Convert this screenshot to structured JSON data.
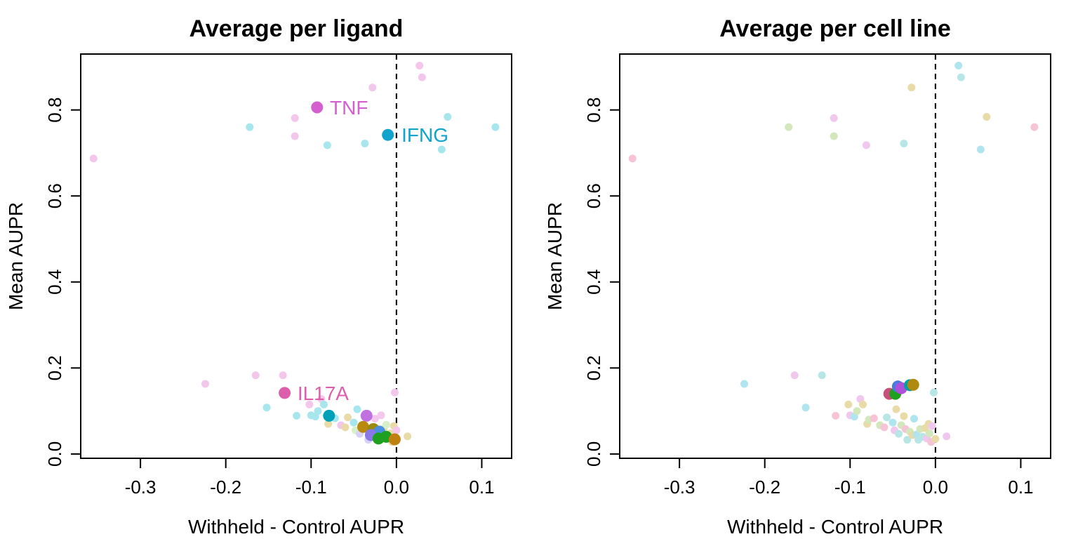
{
  "chart_data": [
    {
      "type": "scatter",
      "title": "Average per ligand",
      "xlabel": "Withheld - Control AUPR",
      "ylabel": "Mean AUPR",
      "xticks": [
        "-0.3",
        "-0.2",
        "-0.1",
        "0.0",
        "0.1"
      ],
      "yticks": [
        "0.0",
        "0.2",
        "0.4",
        "0.6",
        "0.8"
      ],
      "xlim": [
        -0.37,
        0.135
      ],
      "ylim": [
        -0.01,
        0.93
      ],
      "reference_line": {
        "x": 0,
        "style": "dashed"
      },
      "grid": false,
      "background_points": [
        {
          "x": -0.355,
          "y": 0.687,
          "color": "#f3c6ec"
        },
        {
          "x": -0.172,
          "y": 0.76,
          "color": "#a8e6ee"
        },
        {
          "x": -0.119,
          "y": 0.781,
          "color": "#f3c6ec"
        },
        {
          "x": -0.119,
          "y": 0.739,
          "color": "#f3c6ec"
        },
        {
          "x": -0.081,
          "y": 0.718,
          "color": "#a8e6ee"
        },
        {
          "x": -0.037,
          "y": 0.722,
          "color": "#a8e6ee"
        },
        {
          "x": -0.028,
          "y": 0.852,
          "color": "#f3c6ec"
        },
        {
          "x": 0.027,
          "y": 0.903,
          "color": "#f3c6ec"
        },
        {
          "x": 0.03,
          "y": 0.876,
          "color": "#f3c6ec"
        },
        {
          "x": 0.06,
          "y": 0.784,
          "color": "#a8e6ee"
        },
        {
          "x": 0.116,
          "y": 0.76,
          "color": "#a8e6ee"
        },
        {
          "x": 0.053,
          "y": 0.708,
          "color": "#a8e6ee"
        },
        {
          "x": -0.224,
          "y": 0.163,
          "color": "#f3c6ec"
        },
        {
          "x": -0.165,
          "y": 0.183,
          "color": "#f3c6ec"
        },
        {
          "x": -0.133,
          "y": 0.183,
          "color": "#f3c6ec"
        },
        {
          "x": -0.152,
          "y": 0.108,
          "color": "#a8e6ee"
        },
        {
          "x": -0.117,
          "y": 0.089,
          "color": "#a8e6ee"
        },
        {
          "x": -0.102,
          "y": 0.115,
          "color": "#f3c6ec"
        },
        {
          "x": -0.1,
          "y": 0.09,
          "color": "#a8e6ee"
        },
        {
          "x": -0.095,
          "y": 0.087,
          "color": "#a8e6ee"
        },
        {
          "x": -0.092,
          "y": 0.1,
          "color": "#a8e6ee"
        },
        {
          "x": -0.088,
          "y": 0.128,
          "color": "#f3c6ec"
        },
        {
          "x": -0.085,
          "y": 0.115,
          "color": "#a8e6ee"
        },
        {
          "x": -0.08,
          "y": 0.07,
          "color": "#e8dba8"
        },
        {
          "x": -0.072,
          "y": 0.083,
          "color": "#a8e6ee"
        },
        {
          "x": -0.065,
          "y": 0.067,
          "color": "#f3c6ec"
        },
        {
          "x": -0.06,
          "y": 0.062,
          "color": "#e8dba8"
        },
        {
          "x": -0.057,
          "y": 0.085,
          "color": "#e8dba8"
        },
        {
          "x": -0.05,
          "y": 0.073,
          "color": "#a8e6ee"
        },
        {
          "x": -0.048,
          "y": 0.055,
          "color": "#d8f0c8"
        },
        {
          "x": -0.046,
          "y": 0.104,
          "color": "#a8e6ee"
        },
        {
          "x": -0.043,
          "y": 0.047,
          "color": "#d9d0f5"
        },
        {
          "x": -0.04,
          "y": 0.067,
          "color": "#e8dba8"
        },
        {
          "x": -0.035,
          "y": 0.058,
          "color": "#f3c6ec"
        },
        {
          "x": -0.033,
          "y": 0.033,
          "color": "#d9d0f5"
        },
        {
          "x": -0.03,
          "y": 0.052,
          "color": "#d8f0c8"
        },
        {
          "x": -0.025,
          "y": 0.082,
          "color": "#f3c6ec"
        },
        {
          "x": -0.022,
          "y": 0.045,
          "color": "#a8e6ee"
        },
        {
          "x": -0.018,
          "y": 0.09,
          "color": "#f3c6ec"
        },
        {
          "x": -0.015,
          "y": 0.058,
          "color": "#e8dba8"
        },
        {
          "x": -0.012,
          "y": 0.068,
          "color": "#d8f0c8"
        },
        {
          "x": -0.01,
          "y": 0.036,
          "color": "#e8dba8"
        },
        {
          "x": -0.007,
          "y": 0.048,
          "color": "#e8dba8"
        },
        {
          "x": -0.005,
          "y": 0.028,
          "color": "#e8dba8"
        },
        {
          "x": -0.003,
          "y": 0.065,
          "color": "#e8dba8"
        },
        {
          "x": -0.002,
          "y": 0.143,
          "color": "#f3c6ec"
        },
        {
          "x": 0.0,
          "y": 0.055,
          "color": "#f3c6ec"
        },
        {
          "x": 0.013,
          "y": 0.041,
          "color": "#e8dba8"
        }
      ],
      "highlight_points": [
        {
          "x": -0.093,
          "y": 0.806,
          "color": "#d65fd0"
        },
        {
          "x": -0.01,
          "y": 0.742,
          "color": "#10a4cc"
        },
        {
          "x": -0.131,
          "y": 0.142,
          "color": "#db5faa"
        },
        {
          "x": -0.079,
          "y": 0.089,
          "color": "#00a0b8"
        },
        {
          "x": -0.035,
          "y": 0.089,
          "color": "#c070e0"
        },
        {
          "x": -0.039,
          "y": 0.063,
          "color": "#b88a10"
        },
        {
          "x": -0.027,
          "y": 0.058,
          "color": "#9a8a10"
        },
        {
          "x": -0.02,
          "y": 0.052,
          "color": "#4a90e0"
        },
        {
          "x": -0.03,
          "y": 0.044,
          "color": "#8878e8"
        },
        {
          "x": -0.012,
          "y": 0.04,
          "color": "#20a020"
        },
        {
          "x": -0.021,
          "y": 0.036,
          "color": "#20a020"
        },
        {
          "x": -0.002,
          "y": 0.034,
          "color": "#c08010"
        }
      ],
      "annotations": [
        {
          "text": "TNF",
          "x": -0.078,
          "y": 0.806,
          "color": "#d65fd0"
        },
        {
          "text": "IFNG",
          "x": 0.006,
          "y": 0.742,
          "color": "#10a4cc"
        },
        {
          "text": "IL17A",
          "x": -0.116,
          "y": 0.142,
          "color": "#db5faa"
        }
      ]
    },
    {
      "type": "scatter",
      "title": "Average per cell line",
      "xlabel": "Withheld - Control AUPR",
      "ylabel": "Mean AUPR",
      "xticks": [
        "-0.3",
        "-0.2",
        "-0.1",
        "0.0",
        "0.1"
      ],
      "yticks": [
        "0.0",
        "0.2",
        "0.4",
        "0.6",
        "0.8"
      ],
      "xlim": [
        -0.37,
        0.135
      ],
      "ylim": [
        -0.01,
        0.93
      ],
      "reference_line": {
        "x": 0,
        "style": "dashed"
      },
      "grid": false,
      "background_points": [
        {
          "x": -0.355,
          "y": 0.687,
          "color": "#f6c4d6"
        },
        {
          "x": -0.172,
          "y": 0.76,
          "color": "#d2e8bc"
        },
        {
          "x": -0.119,
          "y": 0.781,
          "color": "#f0c8ee"
        },
        {
          "x": -0.119,
          "y": 0.739,
          "color": "#d2e8bc"
        },
        {
          "x": -0.081,
          "y": 0.718,
          "color": "#f0c8ee"
        },
        {
          "x": -0.037,
          "y": 0.722,
          "color": "#b8e6e6"
        },
        {
          "x": -0.028,
          "y": 0.852,
          "color": "#e8dba8"
        },
        {
          "x": 0.027,
          "y": 0.903,
          "color": "#b0e4ee"
        },
        {
          "x": 0.03,
          "y": 0.876,
          "color": "#b8e6e6"
        },
        {
          "x": 0.06,
          "y": 0.784,
          "color": "#e8dba8"
        },
        {
          "x": 0.116,
          "y": 0.76,
          "color": "#f6c4d6"
        },
        {
          "x": 0.053,
          "y": 0.708,
          "color": "#b0e4ee"
        },
        {
          "x": -0.224,
          "y": 0.163,
          "color": "#b0e4ee"
        },
        {
          "x": -0.165,
          "y": 0.183,
          "color": "#f0c8ee"
        },
        {
          "x": -0.133,
          "y": 0.183,
          "color": "#b8e6e6"
        },
        {
          "x": -0.152,
          "y": 0.108,
          "color": "#b0e4ee"
        },
        {
          "x": -0.117,
          "y": 0.089,
          "color": "#f6c4d6"
        },
        {
          "x": -0.102,
          "y": 0.115,
          "color": "#e8dba8"
        },
        {
          "x": -0.1,
          "y": 0.09,
          "color": "#f0c8ee"
        },
        {
          "x": -0.095,
          "y": 0.087,
          "color": "#b0e4ee"
        },
        {
          "x": -0.092,
          "y": 0.1,
          "color": "#d2e8bc"
        },
        {
          "x": -0.088,
          "y": 0.128,
          "color": "#f0c8ee"
        },
        {
          "x": -0.085,
          "y": 0.115,
          "color": "#e8dba8"
        },
        {
          "x": -0.08,
          "y": 0.07,
          "color": "#e8dba8"
        },
        {
          "x": -0.078,
          "y": 0.08,
          "color": "#d2e8bc"
        },
        {
          "x": -0.072,
          "y": 0.083,
          "color": "#f6c4d6"
        },
        {
          "x": -0.065,
          "y": 0.067,
          "color": "#d2e8bc"
        },
        {
          "x": -0.06,
          "y": 0.062,
          "color": "#f6c4d6"
        },
        {
          "x": -0.057,
          "y": 0.085,
          "color": "#b8e6e6"
        },
        {
          "x": -0.05,
          "y": 0.073,
          "color": "#b0e4ee"
        },
        {
          "x": -0.048,
          "y": 0.055,
          "color": "#f0c8ee"
        },
        {
          "x": -0.046,
          "y": 0.104,
          "color": "#e8dba8"
        },
        {
          "x": -0.043,
          "y": 0.047,
          "color": "#b8e6e6"
        },
        {
          "x": -0.04,
          "y": 0.067,
          "color": "#d2e8bc"
        },
        {
          "x": -0.037,
          "y": 0.088,
          "color": "#e8dba8"
        },
        {
          "x": -0.035,
          "y": 0.058,
          "color": "#f6c4d6"
        },
        {
          "x": -0.033,
          "y": 0.033,
          "color": "#b8e6e6"
        },
        {
          "x": -0.03,
          "y": 0.052,
          "color": "#d2e8bc"
        },
        {
          "x": -0.027,
          "y": 0.044,
          "color": "#e8dba8"
        },
        {
          "x": -0.025,
          "y": 0.082,
          "color": "#b0e4ee"
        },
        {
          "x": -0.022,
          "y": 0.045,
          "color": "#b0e4ee"
        },
        {
          "x": -0.02,
          "y": 0.033,
          "color": "#b8e6e6"
        },
        {
          "x": -0.018,
          "y": 0.058,
          "color": "#d2e8bc"
        },
        {
          "x": -0.015,
          "y": 0.04,
          "color": "#b8e6e6"
        },
        {
          "x": -0.012,
          "y": 0.06,
          "color": "#e8dba8"
        },
        {
          "x": -0.01,
          "y": 0.036,
          "color": "#f0c8ee"
        },
        {
          "x": -0.008,
          "y": 0.07,
          "color": "#e8dba8"
        },
        {
          "x": -0.007,
          "y": 0.048,
          "color": "#d2e8bc"
        },
        {
          "x": -0.005,
          "y": 0.028,
          "color": "#f6c4d6"
        },
        {
          "x": -0.004,
          "y": 0.065,
          "color": "#f0c8ee"
        },
        {
          "x": -0.002,
          "y": 0.143,
          "color": "#b8e6e6"
        },
        {
          "x": 0.0,
          "y": 0.035,
          "color": "#e8dba8"
        },
        {
          "x": 0.013,
          "y": 0.041,
          "color": "#f0c8ee"
        }
      ],
      "highlight_points": [
        {
          "x": -0.054,
          "y": 0.14,
          "color": "#c8507a"
        },
        {
          "x": -0.047,
          "y": 0.14,
          "color": "#20a020"
        },
        {
          "x": -0.044,
          "y": 0.157,
          "color": "#4a7ae0"
        },
        {
          "x": -0.04,
          "y": 0.153,
          "color": "#b050d8"
        },
        {
          "x": -0.03,
          "y": 0.16,
          "color": "#00a0a8"
        },
        {
          "x": -0.026,
          "y": 0.161,
          "color": "#b08a10"
        }
      ],
      "annotations": []
    }
  ]
}
